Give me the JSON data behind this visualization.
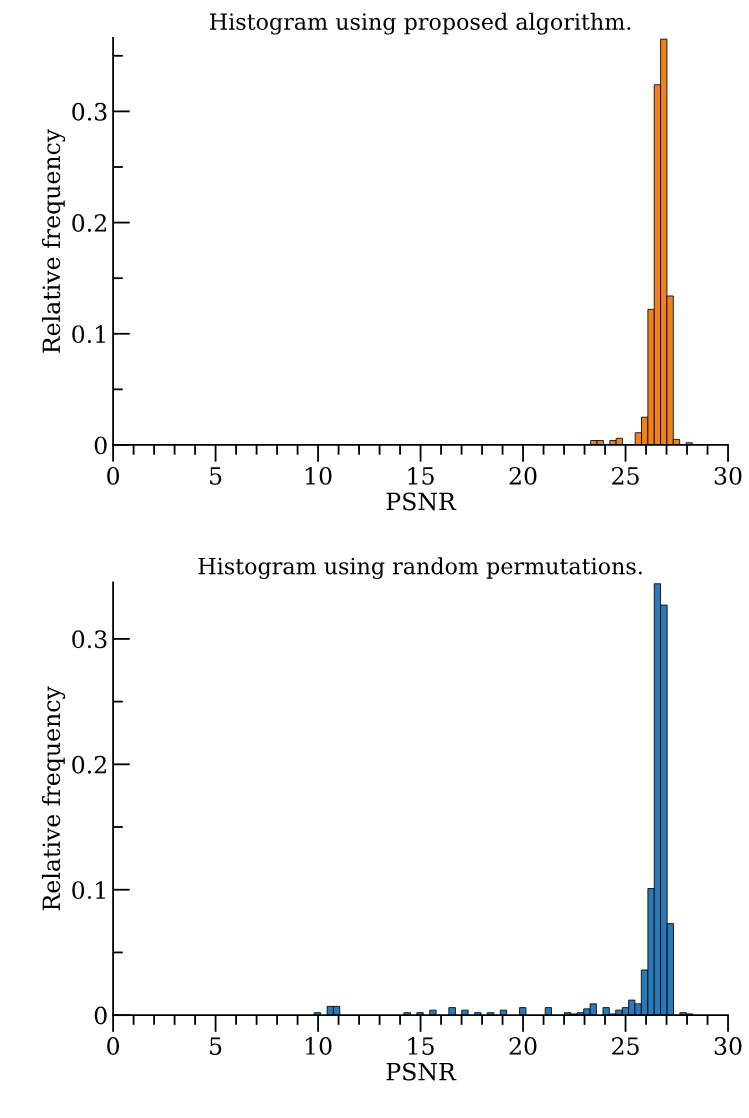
{
  "chart_data": [
    {
      "type": "histogram",
      "title": "Histogram using proposed algorithm.",
      "xlabel": "PSNR",
      "ylabel": "Relative frequency",
      "color": "#f0821e",
      "bins": [
        23.3,
        23.61,
        23.92,
        24.23,
        24.54,
        24.85,
        25.16,
        25.47,
        25.78,
        26.09,
        26.4,
        26.71,
        27.02,
        27.33,
        27.64,
        27.95,
        28.26
      ],
      "values": [
        0.004,
        0.004,
        0,
        0.004,
        0.006,
        0,
        0,
        0.011,
        0.025,
        0.122,
        0.324,
        0.365,
        0.134,
        0.005,
        0,
        0.002
      ],
      "xlim": [
        0,
        30
      ],
      "ylim": [
        0,
        0.366
      ],
      "xticks": [
        0,
        {
          "value": 1,
          "label": null
        },
        {
          "value": 2,
          "label": null
        },
        {
          "value": 3,
          "label": null
        },
        {
          "value": 4,
          "label": null
        },
        5,
        {
          "value": 6,
          "label": null
        },
        {
          "value": 7,
          "label": null
        },
        {
          "value": 8,
          "label": null
        },
        {
          "value": 9,
          "label": null
        },
        10,
        {
          "value": 11,
          "label": null
        },
        {
          "value": 12,
          "label": null
        },
        {
          "value": 13,
          "label": null
        },
        {
          "value": 14,
          "label": null
        },
        15,
        {
          "value": 16,
          "label": null
        },
        {
          "value": 17,
          "label": null
        },
        {
          "value": 18,
          "label": null
        },
        {
          "value": 19,
          "label": null
        },
        20,
        {
          "value": 21,
          "label": null
        },
        {
          "value": 22,
          "label": null
        },
        {
          "value": 23,
          "label": null
        },
        {
          "value": 24,
          "label": null
        },
        25,
        {
          "value": 26,
          "label": null
        },
        {
          "value": 27,
          "label": null
        },
        {
          "value": 28,
          "label": null
        },
        {
          "value": 29,
          "label": null
        },
        30
      ],
      "yticks": [
        0,
        {
          "value": 0.05,
          "label": null
        },
        0.1,
        {
          "value": 0.15,
          "label": null
        },
        0.2,
        {
          "value": 0.25,
          "label": null
        },
        0.3,
        {
          "value": 0.35,
          "label": null
        }
      ],
      "grid": false
    },
    {
      "type": "histogram",
      "title": "Histogram using random permutations.",
      "xlabel": "PSNR",
      "ylabel": "Relative frequency",
      "color": "#2a7ab8",
      "bins": [
        9.81,
        10.12,
        10.44,
        10.75,
        11.06,
        11.38,
        11.69,
        12.0,
        12.32,
        12.63,
        12.94,
        13.25,
        13.57,
        13.88,
        14.19,
        14.51,
        14.82,
        15.13,
        15.45,
        15.76,
        16.07,
        16.38,
        16.7,
        17.01,
        17.32,
        17.64,
        17.95,
        18.26,
        18.58,
        18.89,
        19.2,
        19.51,
        19.83,
        20.14,
        20.45,
        20.77,
        21.08,
        21.39,
        21.71,
        22.02,
        22.33,
        22.64,
        22.96,
        23.27,
        23.58,
        23.9,
        24.21,
        24.52,
        24.84,
        25.15,
        25.46,
        25.77,
        26.09,
        26.4,
        26.71,
        27.03,
        27.34,
        27.65,
        27.97,
        28.28
      ],
      "values": [
        0.002,
        0,
        0.007,
        0.007,
        0,
        0,
        0,
        0,
        0,
        0,
        0,
        0,
        0,
        0,
        0.002,
        0,
        0.002,
        0,
        0.004,
        0,
        0,
        0.006,
        0,
        0.004,
        0,
        0.002,
        0,
        0.002,
        0,
        0.004,
        0,
        0,
        0.006,
        0,
        0,
        0,
        0.006,
        0,
        0,
        0.002,
        0.001,
        0.002,
        0.005,
        0.009,
        0,
        0.006,
        0.001,
        0.004,
        0.006,
        0.012,
        0.009,
        0.036,
        0.101,
        0.344,
        0.327,
        0.073,
        0,
        0.002,
        0.001
      ],
      "xlim": [
        0,
        30
      ],
      "ylim": [
        0,
        0.345
      ],
      "xticks": [
        0,
        {
          "value": 1,
          "label": null
        },
        {
          "value": 2,
          "label": null
        },
        {
          "value": 3,
          "label": null
        },
        {
          "value": 4,
          "label": null
        },
        5,
        {
          "value": 6,
          "label": null
        },
        {
          "value": 7,
          "label": null
        },
        {
          "value": 8,
          "label": null
        },
        {
          "value": 9,
          "label": null
        },
        10,
        {
          "value": 11,
          "label": null
        },
        {
          "value": 12,
          "label": null
        },
        {
          "value": 13,
          "label": null
        },
        {
          "value": 14,
          "label": null
        },
        15,
        {
          "value": 16,
          "label": null
        },
        {
          "value": 17,
          "label": null
        },
        {
          "value": 18,
          "label": null
        },
        {
          "value": 19,
          "label": null
        },
        20,
        {
          "value": 21,
          "label": null
        },
        {
          "value": 22,
          "label": null
        },
        {
          "value": 23,
          "label": null
        },
        {
          "value": 24,
          "label": null
        },
        25,
        {
          "value": 26,
          "label": null
        },
        {
          "value": 27,
          "label": null
        },
        {
          "value": 28,
          "label": null
        },
        {
          "value": 29,
          "label": null
        },
        30
      ],
      "yticks": [
        0,
        {
          "value": 0.05,
          "label": null
        },
        0.1,
        {
          "value": 0.15,
          "label": null
        },
        0.2,
        {
          "value": 0.25,
          "label": null
        },
        0.3
      ],
      "grid": false
    }
  ]
}
